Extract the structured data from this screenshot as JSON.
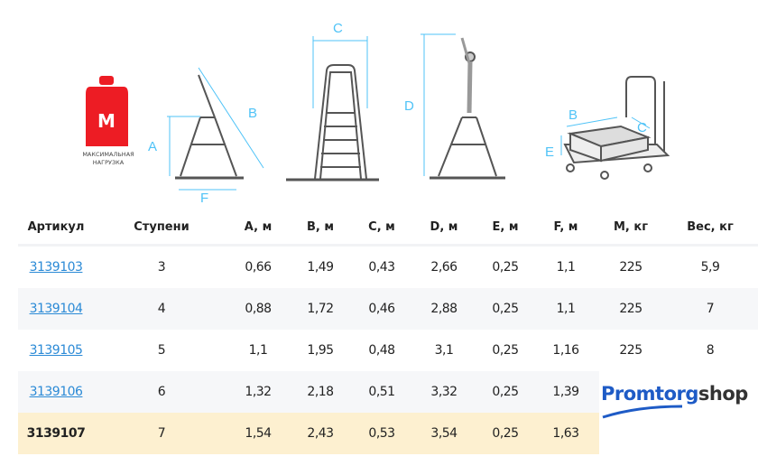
{
  "weight": {
    "letter": "M",
    "label_line1": "МАКСИМАЛЬНАЯ",
    "label_line2": "НАГРУЗКА",
    "color": "#ed1c24"
  },
  "dims": {
    "a": "A",
    "b": "B",
    "c": "C",
    "d": "D",
    "e": "E",
    "f": "F"
  },
  "table": {
    "headers": [
      "Артикул",
      "Ступени",
      "A, м",
      "B, м",
      "C, м",
      "D, м",
      "E, м",
      "F, м",
      "M, кг",
      "Вес, кг"
    ],
    "rows": [
      [
        "3139103",
        "3",
        "0,66",
        "1,49",
        "0,43",
        "2,66",
        "0,25",
        "1,1",
        "225",
        "5,9"
      ],
      [
        "3139104",
        "4",
        "0,88",
        "1,72",
        "0,46",
        "2,88",
        "0,25",
        "1,1",
        "225",
        "7"
      ],
      [
        "3139105",
        "5",
        "1,1",
        "1,95",
        "0,48",
        "3,1",
        "0,25",
        "1,16",
        "225",
        "8"
      ],
      [
        "3139106",
        "6",
        "1,32",
        "2,18",
        "0,51",
        "3,32",
        "0,25",
        "1,39",
        "",
        ""
      ],
      [
        "3139107",
        "7",
        "1,54",
        "2,43",
        "0,53",
        "3,54",
        "0,25",
        "1,63",
        "",
        ""
      ]
    ]
  },
  "logo": {
    "part1": "Promtorg",
    "part2": "shop",
    "color": "#1e5bc6"
  },
  "colors": {
    "dimension": "#4fc3f7",
    "link": "#2b8ad6",
    "highlight": "#fdf0d0"
  }
}
